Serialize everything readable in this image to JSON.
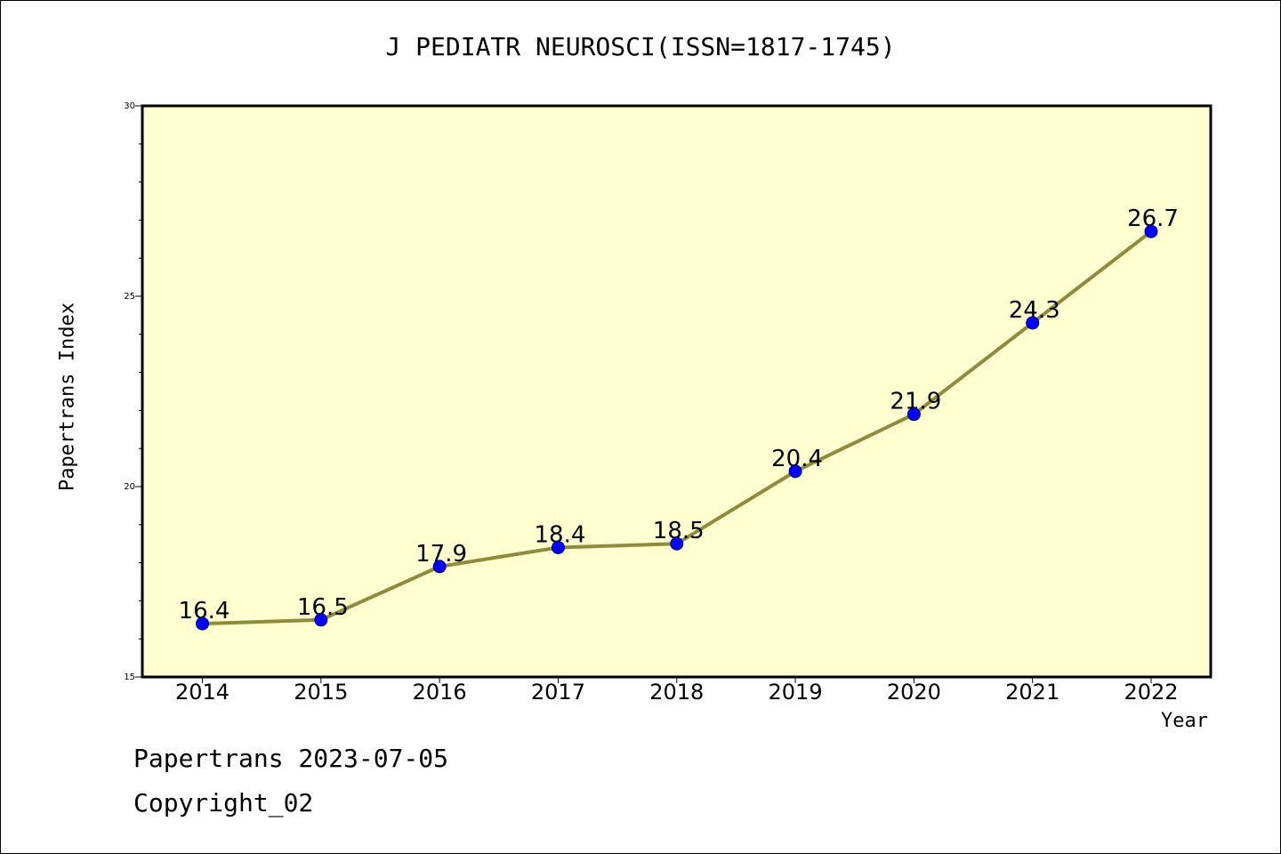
{
  "chart_data": {
    "type": "line",
    "title": "J PEDIATR NEUROSCI(ISSN=1817-1745)",
    "xlabel": "Year",
    "ylabel": "Papertrans Index",
    "ylim": [
      15,
      30
    ],
    "yticks": [
      15,
      20,
      25,
      30
    ],
    "categories": [
      "2014",
      "2015",
      "2016",
      "2017",
      "2018",
      "2019",
      "2020",
      "2021",
      "2022"
    ],
    "series": [
      {
        "values": [
          16.4,
          16.5,
          17.9,
          18.4,
          18.5,
          20.4,
          21.9,
          24.3,
          26.7
        ],
        "data_labels": [
          "16.4",
          "16.5",
          "17.9",
          "18.4",
          "18.5",
          "20.4",
          "21.9",
          "24.3",
          "26.7"
        ]
      }
    ],
    "grid": false,
    "colors": {
      "plot_background": "#ffffd0",
      "line": "#8f8a3c",
      "marker": "#0000ff"
    }
  },
  "footer": {
    "line1": "Papertrans 2023-07-05",
    "line2": "Copyright_02"
  }
}
